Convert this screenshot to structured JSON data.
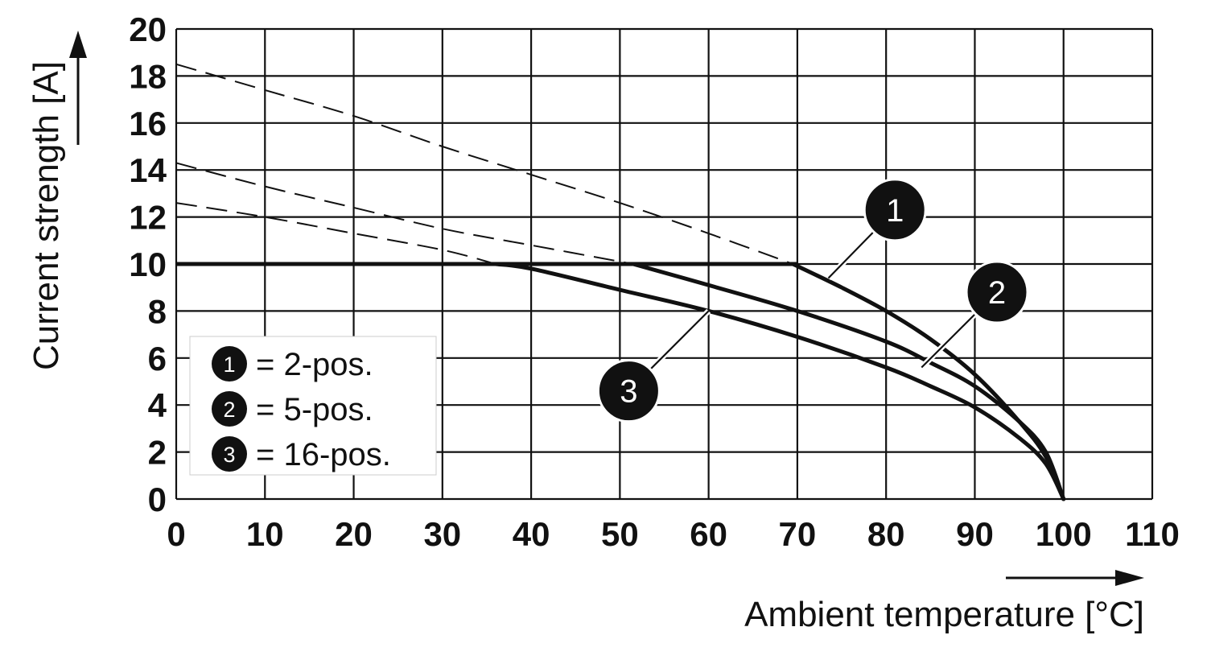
{
  "chart_data": {
    "type": "line",
    "xlabel": "Ambient temperature [°C]",
    "ylabel": "Current strength [A]",
    "xlim": [
      0,
      110
    ],
    "ylim": [
      0,
      20
    ],
    "xticks": [
      "0",
      "10",
      "20",
      "30",
      "40",
      "50",
      "60",
      "70",
      "80",
      "90",
      "100",
      "110"
    ],
    "yticks": [
      "0",
      "2",
      "4",
      "6",
      "8",
      "10",
      "12",
      "14",
      "16",
      "18",
      "20"
    ],
    "grid": true,
    "limit_line": {
      "y": 10,
      "x_range": [
        0,
        70
      ]
    },
    "series": [
      {
        "marker": "1",
        "name": "2-pos.",
        "solid": {
          "x": [
            69.5,
            75,
            80,
            85,
            90,
            95,
            98,
            100
          ],
          "y": [
            10,
            9.0,
            8.0,
            6.8,
            5.3,
            3.3,
            1.8,
            0
          ]
        },
        "dashed": {
          "x": [
            0,
            10,
            20,
            30,
            40,
            50,
            60,
            69.5
          ],
          "y": [
            18.5,
            17.4,
            16.3,
            15.0,
            13.8,
            12.6,
            11.3,
            10
          ]
        },
        "label_at": {
          "x": 81,
          "y": 12.3
        }
      },
      {
        "marker": "2",
        "name": "5-pos.",
        "solid": {
          "x": [
            51.5,
            60,
            70,
            80,
            85,
            90,
            95,
            98,
            100
          ],
          "y": [
            10,
            9.1,
            8.0,
            6.7,
            5.8,
            4.8,
            3.3,
            2.0,
            0
          ]
        },
        "dashed": {
          "x": [
            0,
            10,
            20,
            30,
            40,
            51.5
          ],
          "y": [
            14.3,
            13.3,
            12.4,
            11.5,
            10.8,
            10
          ]
        },
        "label_at": {
          "x": 92.5,
          "y": 8.8
        }
      },
      {
        "marker": "3",
        "name": "16-pos.",
        "solid": {
          "x": [
            36,
            40,
            50,
            60,
            70,
            80,
            85,
            90,
            95,
            98,
            100
          ],
          "y": [
            10,
            9.8,
            8.9,
            8.0,
            6.9,
            5.6,
            4.8,
            3.9,
            2.6,
            1.5,
            0
          ]
        },
        "dashed": {
          "x": [
            0,
            10,
            20,
            30,
            36
          ],
          "y": [
            12.6,
            12.0,
            11.3,
            10.6,
            10
          ]
        },
        "label_at": {
          "x": 51,
          "y": 4.6
        }
      }
    ],
    "legend": {
      "placement": "bottom-left",
      "entries": [
        {
          "marker": "1",
          "text": "= 2-pos."
        },
        {
          "marker": "2",
          "text": "= 5-pos."
        },
        {
          "marker": "3",
          "text": "= 16-pos."
        }
      ]
    }
  }
}
